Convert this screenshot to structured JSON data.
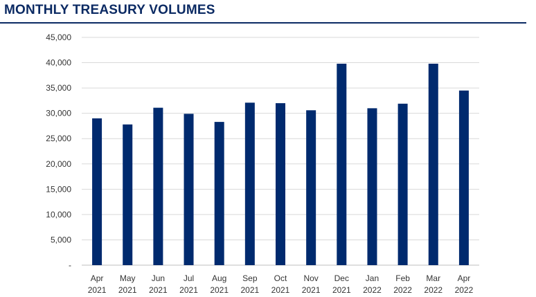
{
  "header": {
    "title": "MONTHLY TREASURY VOLUMES"
  },
  "colors": {
    "bar": "#002a6e",
    "title": "#0b2a63",
    "grid": "#d9d9d9",
    "axis": "#bfbfbf"
  },
  "chart_data": {
    "type": "bar",
    "title": "MONTHLY TREASURY VOLUMES",
    "categories": [
      [
        "Apr",
        "2021"
      ],
      [
        "May",
        "2021"
      ],
      [
        "Jun",
        "2021"
      ],
      [
        "Jul",
        "2021"
      ],
      [
        "Aug",
        "2021"
      ],
      [
        "Sep",
        "2021"
      ],
      [
        "Oct",
        "2021"
      ],
      [
        "Nov",
        "2021"
      ],
      [
        "Dec",
        "2021"
      ],
      [
        "Jan",
        "2022"
      ],
      [
        "Feb",
        "2022"
      ],
      [
        "Mar",
        "2022"
      ],
      [
        "Apr",
        "2022"
      ]
    ],
    "values": [
      29000,
      27800,
      31100,
      29900,
      28300,
      32100,
      32000,
      30600,
      39800,
      31000,
      31900,
      39800,
      34500
    ],
    "ylim": [
      0,
      45000
    ],
    "ytick_values": [
      0,
      5000,
      10000,
      15000,
      20000,
      25000,
      30000,
      35000,
      40000,
      45000
    ],
    "ytick_labels": [
      "-",
      "5,000",
      "10,000",
      "15,000",
      "20,000",
      "25,000",
      "30,000",
      "35,000",
      "40,000",
      "45,000"
    ],
    "grid": true,
    "legend": "none"
  }
}
